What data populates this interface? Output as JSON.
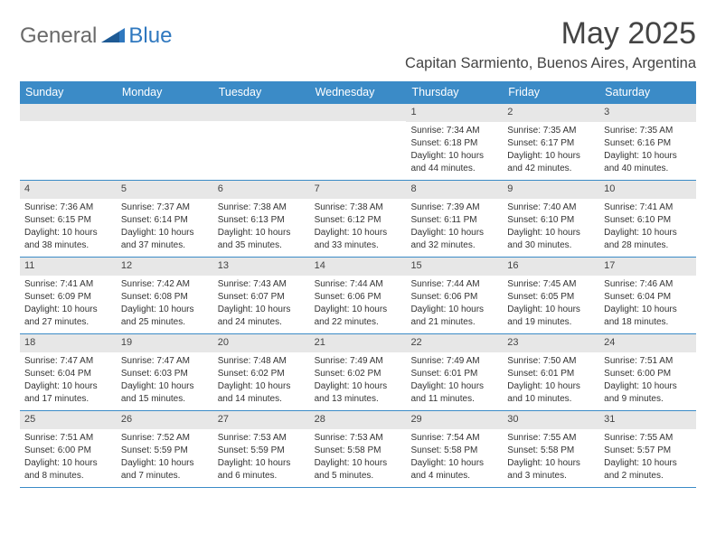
{
  "logo": {
    "general": "General",
    "blue": "Blue"
  },
  "title": "May 2025",
  "location": "Capitan Sarmiento, Buenos Aires, Argentina",
  "colors": {
    "header_bg": "#3b8bc7",
    "daynum_bg": "#e7e7e7",
    "border": "#3b8bc7",
    "logo_gray": "#6a6a6a",
    "logo_blue": "#2f78bf"
  },
  "weekdays": [
    "Sunday",
    "Monday",
    "Tuesday",
    "Wednesday",
    "Thursday",
    "Friday",
    "Saturday"
  ],
  "weeks": [
    [
      null,
      null,
      null,
      null,
      {
        "n": "1",
        "sr": "7:34 AM",
        "ss": "6:18 PM",
        "dl1": "Daylight: 10 hours",
        "dl2": "and 44 minutes."
      },
      {
        "n": "2",
        "sr": "7:35 AM",
        "ss": "6:17 PM",
        "dl1": "Daylight: 10 hours",
        "dl2": "and 42 minutes."
      },
      {
        "n": "3",
        "sr": "7:35 AM",
        "ss": "6:16 PM",
        "dl1": "Daylight: 10 hours",
        "dl2": "and 40 minutes."
      }
    ],
    [
      {
        "n": "4",
        "sr": "7:36 AM",
        "ss": "6:15 PM",
        "dl1": "Daylight: 10 hours",
        "dl2": "and 38 minutes."
      },
      {
        "n": "5",
        "sr": "7:37 AM",
        "ss": "6:14 PM",
        "dl1": "Daylight: 10 hours",
        "dl2": "and 37 minutes."
      },
      {
        "n": "6",
        "sr": "7:38 AM",
        "ss": "6:13 PM",
        "dl1": "Daylight: 10 hours",
        "dl2": "and 35 minutes."
      },
      {
        "n": "7",
        "sr": "7:38 AM",
        "ss": "6:12 PM",
        "dl1": "Daylight: 10 hours",
        "dl2": "and 33 minutes."
      },
      {
        "n": "8",
        "sr": "7:39 AM",
        "ss": "6:11 PM",
        "dl1": "Daylight: 10 hours",
        "dl2": "and 32 minutes."
      },
      {
        "n": "9",
        "sr": "7:40 AM",
        "ss": "6:10 PM",
        "dl1": "Daylight: 10 hours",
        "dl2": "and 30 minutes."
      },
      {
        "n": "10",
        "sr": "7:41 AM",
        "ss": "6:10 PM",
        "dl1": "Daylight: 10 hours",
        "dl2": "and 28 minutes."
      }
    ],
    [
      {
        "n": "11",
        "sr": "7:41 AM",
        "ss": "6:09 PM",
        "dl1": "Daylight: 10 hours",
        "dl2": "and 27 minutes."
      },
      {
        "n": "12",
        "sr": "7:42 AM",
        "ss": "6:08 PM",
        "dl1": "Daylight: 10 hours",
        "dl2": "and 25 minutes."
      },
      {
        "n": "13",
        "sr": "7:43 AM",
        "ss": "6:07 PM",
        "dl1": "Daylight: 10 hours",
        "dl2": "and 24 minutes."
      },
      {
        "n": "14",
        "sr": "7:44 AM",
        "ss": "6:06 PM",
        "dl1": "Daylight: 10 hours",
        "dl2": "and 22 minutes."
      },
      {
        "n": "15",
        "sr": "7:44 AM",
        "ss": "6:06 PM",
        "dl1": "Daylight: 10 hours",
        "dl2": "and 21 minutes."
      },
      {
        "n": "16",
        "sr": "7:45 AM",
        "ss": "6:05 PM",
        "dl1": "Daylight: 10 hours",
        "dl2": "and 19 minutes."
      },
      {
        "n": "17",
        "sr": "7:46 AM",
        "ss": "6:04 PM",
        "dl1": "Daylight: 10 hours",
        "dl2": "and 18 minutes."
      }
    ],
    [
      {
        "n": "18",
        "sr": "7:47 AM",
        "ss": "6:04 PM",
        "dl1": "Daylight: 10 hours",
        "dl2": "and 17 minutes."
      },
      {
        "n": "19",
        "sr": "7:47 AM",
        "ss": "6:03 PM",
        "dl1": "Daylight: 10 hours",
        "dl2": "and 15 minutes."
      },
      {
        "n": "20",
        "sr": "7:48 AM",
        "ss": "6:02 PM",
        "dl1": "Daylight: 10 hours",
        "dl2": "and 14 minutes."
      },
      {
        "n": "21",
        "sr": "7:49 AM",
        "ss": "6:02 PM",
        "dl1": "Daylight: 10 hours",
        "dl2": "and 13 minutes."
      },
      {
        "n": "22",
        "sr": "7:49 AM",
        "ss": "6:01 PM",
        "dl1": "Daylight: 10 hours",
        "dl2": "and 11 minutes."
      },
      {
        "n": "23",
        "sr": "7:50 AM",
        "ss": "6:01 PM",
        "dl1": "Daylight: 10 hours",
        "dl2": "and 10 minutes."
      },
      {
        "n": "24",
        "sr": "7:51 AM",
        "ss": "6:00 PM",
        "dl1": "Daylight: 10 hours",
        "dl2": "and 9 minutes."
      }
    ],
    [
      {
        "n": "25",
        "sr": "7:51 AM",
        "ss": "6:00 PM",
        "dl1": "Daylight: 10 hours",
        "dl2": "and 8 minutes."
      },
      {
        "n": "26",
        "sr": "7:52 AM",
        "ss": "5:59 PM",
        "dl1": "Daylight: 10 hours",
        "dl2": "and 7 minutes."
      },
      {
        "n": "27",
        "sr": "7:53 AM",
        "ss": "5:59 PM",
        "dl1": "Daylight: 10 hours",
        "dl2": "and 6 minutes."
      },
      {
        "n": "28",
        "sr": "7:53 AM",
        "ss": "5:58 PM",
        "dl1": "Daylight: 10 hours",
        "dl2": "and 5 minutes."
      },
      {
        "n": "29",
        "sr": "7:54 AM",
        "ss": "5:58 PM",
        "dl1": "Daylight: 10 hours",
        "dl2": "and 4 minutes."
      },
      {
        "n": "30",
        "sr": "7:55 AM",
        "ss": "5:58 PM",
        "dl1": "Daylight: 10 hours",
        "dl2": "and 3 minutes."
      },
      {
        "n": "31",
        "sr": "7:55 AM",
        "ss": "5:57 PM",
        "dl1": "Daylight: 10 hours",
        "dl2": "and 2 minutes."
      }
    ]
  ],
  "labels": {
    "sunrise": "Sunrise: ",
    "sunset": "Sunset: "
  }
}
